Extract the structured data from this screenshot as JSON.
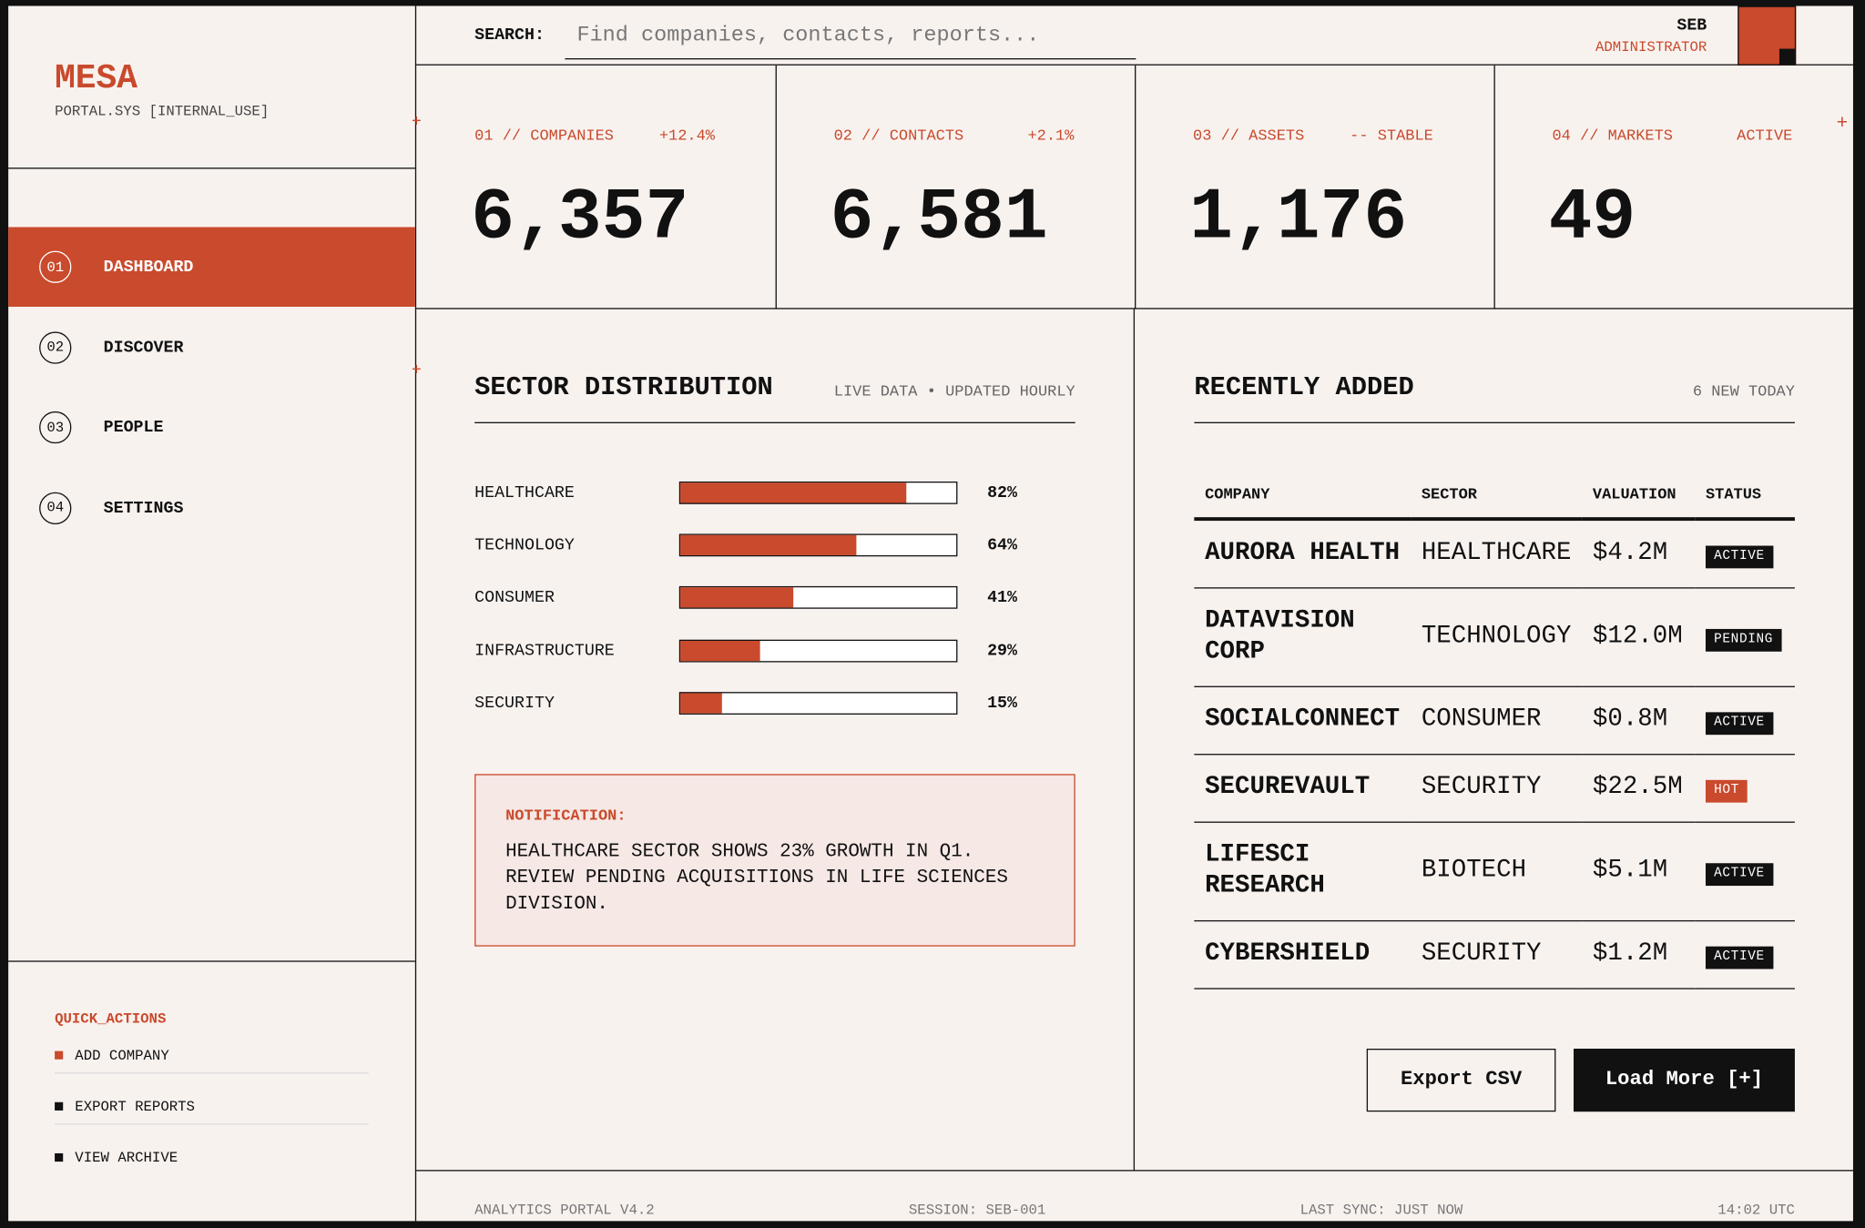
{
  "brand": {
    "name": "MESA",
    "subtitle": "PORTAL.SYS [INTERNAL_USE]"
  },
  "nav": [
    {
      "number": "01",
      "label": "DASHBOARD",
      "active": true
    },
    {
      "number": "02",
      "label": "DISCOVER",
      "active": false
    },
    {
      "number": "03",
      "label": "PEOPLE",
      "active": false
    },
    {
      "number": "04",
      "label": "SETTINGS",
      "active": false
    }
  ],
  "quick_actions": {
    "title": "QUICK_ACTIONS",
    "items": [
      {
        "label": "ADD COMPANY",
        "color": "#c94a2c"
      },
      {
        "label": "EXPORT REPORTS",
        "color": "#111111"
      },
      {
        "label": "VIEW ARCHIVE",
        "color": "#111111"
      }
    ]
  },
  "search": {
    "label": "SEARCH:",
    "placeholder": "Find companies, contacts, reports..."
  },
  "user": {
    "name": "SEB",
    "role": "ADMINISTRATOR"
  },
  "stats": [
    {
      "label": "01 // COMPANIES",
      "change": "+12.4%",
      "value": "6,357"
    },
    {
      "label": "02 // CONTACTS",
      "change": "+2.1%",
      "value": "6,581"
    },
    {
      "label": "03 // ASSETS",
      "change": "-- STABLE",
      "value": "1,176"
    },
    {
      "label": "04 // MARKETS",
      "change": "ACTIVE",
      "value": "49"
    }
  ],
  "sector_distribution": {
    "title": "SECTOR DISTRIBUTION",
    "subtitle": "LIVE DATA • UPDATED HOURLY",
    "color": "#c94a2c",
    "sectors": [
      {
        "name": "HEALTHCARE",
        "value": 82,
        "label": "82%"
      },
      {
        "name": "TECHNOLOGY",
        "value": 64,
        "label": "64%"
      },
      {
        "name": "CONSUMER",
        "value": 41,
        "label": "41%"
      },
      {
        "name": "INFRASTRUCTURE",
        "value": 29,
        "label": "29%"
      },
      {
        "name": "SECURITY",
        "value": 15,
        "label": "15%"
      }
    ]
  },
  "notification": {
    "title": "NOTIFICATION:",
    "text": "HEALTHCARE SECTOR SHOWS 23% GROWTH IN Q1. REVIEW PENDING ACQUISITIONS IN LIFE SCIENCES DIVISION."
  },
  "recently_added": {
    "title": "RECENTLY ADDED",
    "subtitle": "6 NEW TODAY",
    "columns": [
      "COMPANY",
      "SECTOR",
      "VALUATION",
      "STATUS"
    ],
    "rows": [
      {
        "company": "AURORA HEALTH",
        "sector": "HEALTHCARE",
        "valuation": "$4.2M",
        "status": "ACTIVE",
        "status_color": "#111111"
      },
      {
        "company": "DATAVISION CORP",
        "sector": "TECHNOLOGY",
        "valuation": "$12.0M",
        "status": "PENDING",
        "status_color": "#111111"
      },
      {
        "company": "SOCIALCONNECT",
        "sector": "CONSUMER",
        "valuation": "$0.8M",
        "status": "ACTIVE",
        "status_color": "#111111"
      },
      {
        "company": "SECUREVAULT",
        "sector": "SECURITY",
        "valuation": "$22.5M",
        "status": "HOT",
        "status_color": "#c94a2c"
      },
      {
        "company": "LIFESCI RESEARCH",
        "sector": "BIOTECH",
        "valuation": "$5.1M",
        "status": "ACTIVE",
        "status_color": "#111111"
      },
      {
        "company": "CYBERSHIELD",
        "sector": "SECURITY",
        "valuation": "$1.2M",
        "status": "ACTIVE",
        "status_color": "#111111"
      }
    ]
  },
  "buttons": [
    "Export CSV",
    "Load More [+]"
  ],
  "footer": [
    "ANALYTICS PORTAL V4.2",
    "SESSION: SEB-001",
    "LAST SYNC: JUST NOW",
    "14:02 UTC"
  ]
}
